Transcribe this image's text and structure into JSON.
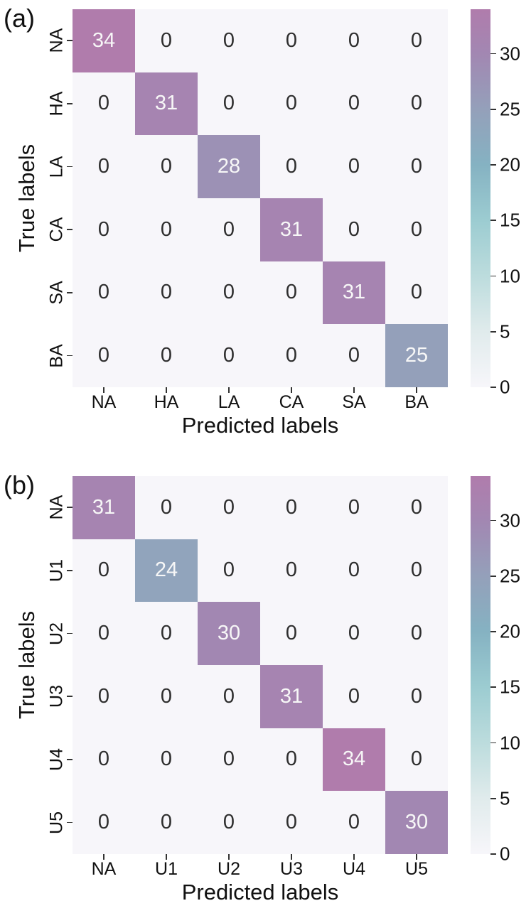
{
  "chart_data": [
    {
      "type": "heatmap",
      "panel_label": "(a)",
      "xlabel": "Predicted labels",
      "ylabel": "True labels",
      "x_ticklabels": [
        "NA",
        "HA",
        "LA",
        "CA",
        "SA",
        "BA"
      ],
      "y_ticklabels": [
        "NA",
        "HA",
        "LA",
        "CA",
        "SA",
        "BA"
      ],
      "matrix": [
        [
          34,
          0,
          0,
          0,
          0,
          0
        ],
        [
          0,
          31,
          0,
          0,
          0,
          0
        ],
        [
          0,
          0,
          28,
          0,
          0,
          0
        ],
        [
          0,
          0,
          0,
          31,
          0,
          0
        ],
        [
          0,
          0,
          0,
          0,
          31,
          0
        ],
        [
          0,
          0,
          0,
          0,
          0,
          25
        ]
      ],
      "colorbar_ticks": [
        0,
        5,
        10,
        15,
        20,
        25,
        30
      ],
      "legend_position": "right",
      "grid": false
    },
    {
      "type": "heatmap",
      "panel_label": "(b)",
      "xlabel": "Predicted labels",
      "ylabel": "True labels",
      "x_ticklabels": [
        "NA",
        "U1",
        "U2",
        "U3",
        "U4",
        "U5"
      ],
      "y_ticklabels": [
        "NA",
        "U1",
        "U2",
        "U3",
        "U4",
        "U5"
      ],
      "matrix": [
        [
          31,
          0,
          0,
          0,
          0,
          0
        ],
        [
          0,
          24,
          0,
          0,
          0,
          0
        ],
        [
          0,
          0,
          30,
          0,
          0,
          0
        ],
        [
          0,
          0,
          0,
          31,
          0,
          0
        ],
        [
          0,
          0,
          0,
          0,
          34,
          0
        ],
        [
          0,
          0,
          0,
          0,
          0,
          30
        ]
      ],
      "colorbar_ticks": [
        0,
        5,
        10,
        15,
        20,
        25,
        30
      ],
      "legend_position": "right",
      "grid": false
    }
  ],
  "colormap": {
    "vmin": 0,
    "vmax": 34,
    "anchors": [
      [
        0,
        "#f7f6fa"
      ],
      [
        5,
        "#e0ebec"
      ],
      [
        10,
        "#bcdcdd"
      ],
      [
        15,
        "#9cccd1"
      ],
      [
        20,
        "#85b2c2"
      ],
      [
        25,
        "#94a0ba"
      ],
      [
        30,
        "#a287b2"
      ],
      [
        34,
        "#b07cac"
      ]
    ]
  },
  "text_colors": {
    "diagonal_value": "#f7f7f7",
    "zero_value": "#2e2e2e",
    "axis_text": "#111111"
  }
}
